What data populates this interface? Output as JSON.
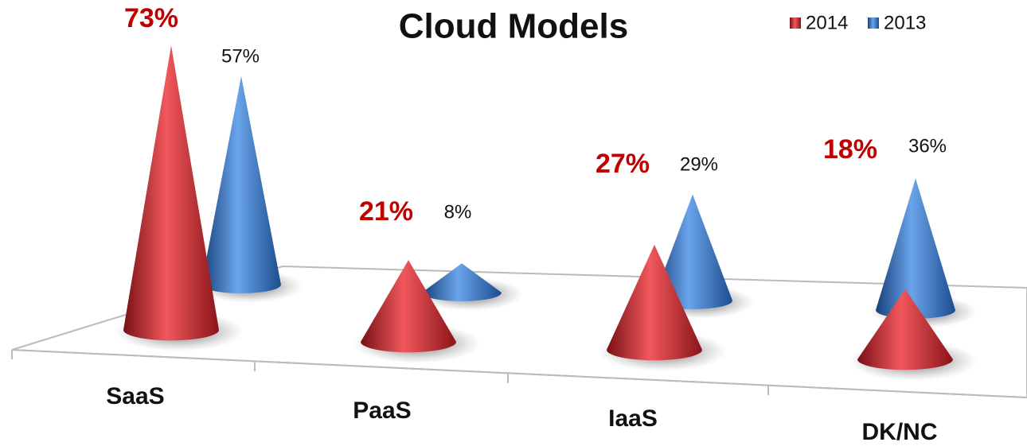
{
  "chart_data": {
    "type": "cone",
    "title": "Cloud Models",
    "categories": [
      "SaaS",
      "PaaS",
      "IaaS",
      "DK/NC"
    ],
    "series": [
      {
        "name": "2014",
        "color": "#c0262b",
        "values": [
          73,
          21,
          27,
          18
        ],
        "value_labels": [
          "73%",
          "21%",
          "27%",
          "18%"
        ]
      },
      {
        "name": "2013",
        "color": "#2d6cc0",
        "values": [
          57,
          8,
          29,
          36
        ],
        "value_labels": [
          "57%",
          "8%",
          "29%",
          "36%"
        ]
      }
    ]
  }
}
